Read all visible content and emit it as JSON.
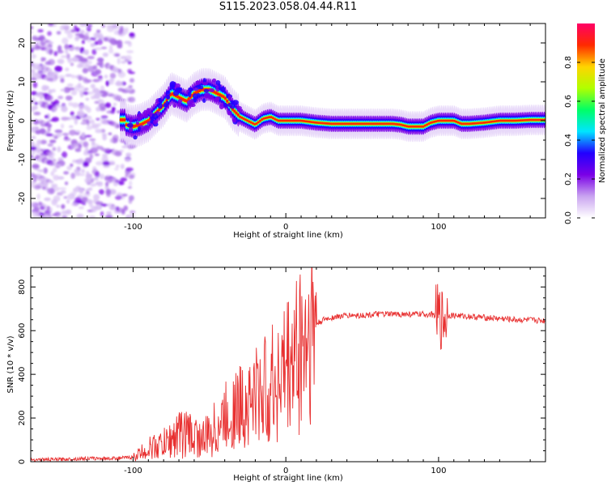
{
  "figure": {
    "title": "S115.2023.058.04.44.R11"
  },
  "chart_data": [
    {
      "type": "heatmap",
      "panel": "top",
      "xlabel": "Height of straight line (km)",
      "ylabel": "Frequency (Hz)",
      "xlim": [
        -167,
        170
      ],
      "ylim": [
        -25,
        25
      ],
      "xticks": [
        -100,
        0,
        100
      ],
      "xtick_labels": [
        "-100",
        "0",
        "100"
      ],
      "yticks": [
        -20,
        -10,
        0,
        10,
        20
      ],
      "ytick_labels": [
        "-20",
        "-10",
        "0",
        "10",
        "20"
      ],
      "grid": false,
      "colorbar": {
        "label": "Normalized spectral amplitude",
        "range": [
          0,
          1
        ],
        "ticks": [
          0.0,
          0.2,
          0.4,
          0.6,
          0.8
        ],
        "tick_labels": [
          "0.0",
          "0.2",
          "0.4",
          "0.6",
          "0.8"
        ],
        "colormap": [
          "#ffffff",
          "#c9a4f0",
          "#7a00e6",
          "#2200ff",
          "#00e5ff",
          "#00ff66",
          "#b0ff00",
          "#ffd400",
          "#ff2a00",
          "#ff0066"
        ]
      },
      "ridge": {
        "x": [
          -105,
          -100,
          -95,
          -90,
          -85,
          -80,
          -75,
          -70,
          -65,
          -60,
          -55,
          -50,
          -45,
          -40,
          -35,
          -30,
          -25,
          -20,
          -15,
          -10,
          -5,
          0,
          10,
          20,
          30,
          40,
          50,
          60,
          70,
          75,
          80,
          85,
          90,
          95,
          100,
          105,
          110,
          115,
          120,
          130,
          140,
          150,
          160,
          170
        ],
        "y": [
          -1,
          -1.5,
          -1,
          0,
          2,
          4,
          7,
          6,
          5,
          7,
          8,
          8,
          7,
          6,
          3,
          1,
          0,
          -1,
          0.5,
          1,
          0,
          0,
          0,
          -0.5,
          -0.8,
          -0.8,
          -0.8,
          -0.8,
          -0.8,
          -1,
          -1.5,
          -1.5,
          -1.5,
          -0.5,
          0,
          0,
          0,
          -0.8,
          -0.8,
          -0.5,
          0,
          0,
          0.2,
          0.2
        ]
      }
    },
    {
      "type": "line",
      "panel": "bottom",
      "xlabel": "Height of straight line (km)",
      "ylabel": "SNR (10 * v/v)",
      "xlim": [
        -167,
        170
      ],
      "ylim": [
        0,
        890
      ],
      "xticks": [
        -100,
        0,
        100
      ],
      "xtick_labels": [
        "-100",
        "0",
        "100"
      ],
      "yticks": [
        0,
        200,
        400,
        600,
        800
      ],
      "ytick_labels": [
        "0",
        "200",
        "400",
        "600",
        "800"
      ],
      "grid": false,
      "series": [
        {
          "color": "#e83030",
          "x": [
            -167,
            -150,
            -130,
            -115,
            -100,
            -95,
            -90,
            -85,
            -80,
            -75,
            -70,
            -65,
            -60,
            -55,
            -50,
            -45,
            -40,
            -35,
            -30,
            -25,
            -20,
            -15,
            -10,
            -5,
            0,
            5,
            10,
            15,
            20,
            25,
            30,
            40,
            50,
            60,
            70,
            80,
            90,
            95,
            98,
            100,
            102,
            104,
            106,
            110,
            120,
            130,
            140,
            150,
            160,
            170
          ],
          "y": [
            10,
            10,
            15,
            15,
            20,
            40,
            60,
            70,
            80,
            100,
            130,
            130,
            120,
            100,
            120,
            160,
            200,
            230,
            250,
            270,
            300,
            320,
            340,
            380,
            420,
            470,
            530,
            590,
            630,
            650,
            660,
            670,
            670,
            675,
            675,
            675,
            675,
            675,
            670,
            660,
            650,
            660,
            670,
            670,
            665,
            660,
            655,
            650,
            648,
            645
          ]
        }
      ]
    }
  ]
}
